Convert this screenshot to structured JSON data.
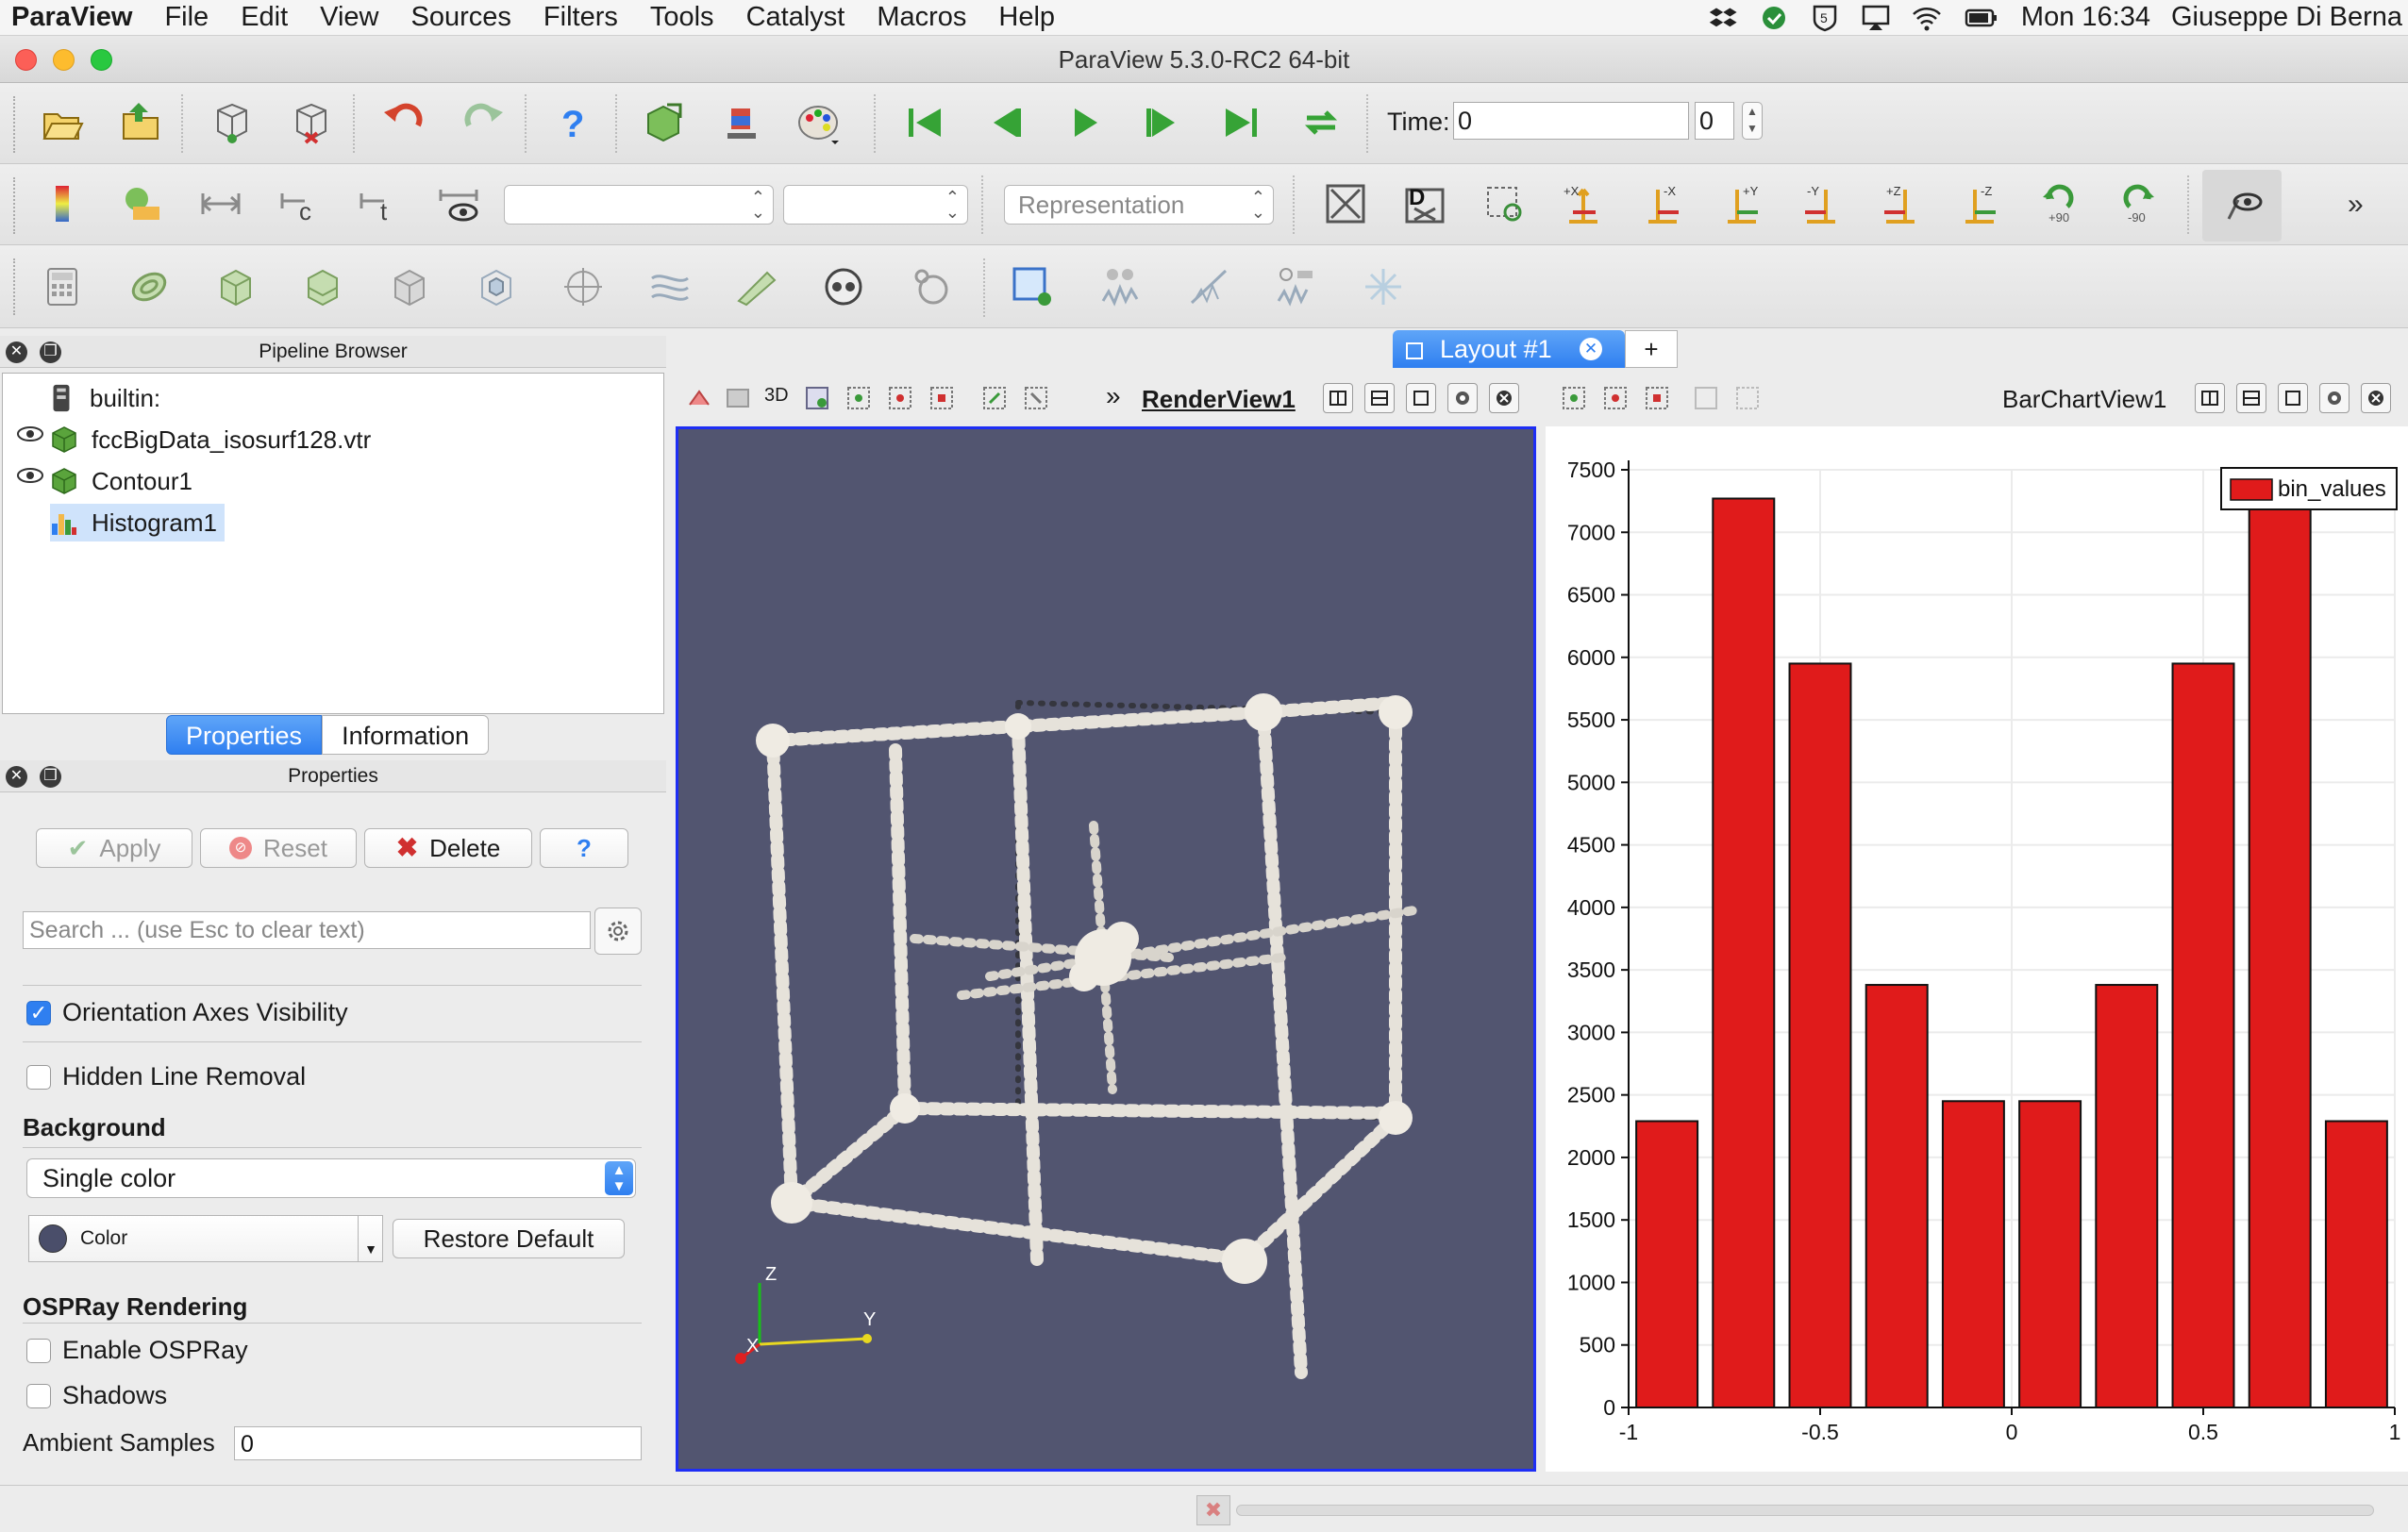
{
  "menubar": {
    "app": "ParaView",
    "items": [
      "File",
      "Edit",
      "View",
      "Sources",
      "Filters",
      "Tools",
      "Catalyst",
      "Macros",
      "Help"
    ],
    "clock": "Mon 16:34",
    "user": "Giuseppe Di Berna",
    "status_icons": [
      "dropbox-icon",
      "cloud-sync-icon",
      "shield-icon",
      "airplay-icon",
      "wifi-icon",
      "battery-icon"
    ]
  },
  "window": {
    "title": "ParaView 5.3.0-RC2 64-bit"
  },
  "toolbar": {
    "time_label": "Time:",
    "time_value": "0",
    "time_index": "0",
    "combo_representation": "Representation",
    "rotate_plus": "+90",
    "rotate_minus": "-90"
  },
  "pipeline": {
    "header": "Pipeline Browser",
    "items": [
      {
        "label": "builtin:",
        "icon": "server-icon",
        "visible": false
      },
      {
        "label": "fccBigData_isosurf128.vtr",
        "icon": "dataset-icon",
        "visible": true
      },
      {
        "label": "Contour1",
        "icon": "dataset-icon",
        "visible": true
      },
      {
        "label": "Histogram1",
        "icon": "histogram-icon",
        "visible": false,
        "selected": true
      }
    ]
  },
  "tabs": {
    "properties": "Properties",
    "information": "Information"
  },
  "properties": {
    "header": "Properties",
    "apply": "Apply",
    "reset": "Reset",
    "delete": "Delete",
    "help": "?",
    "search_placeholder": "Search ... (use Esc to clear text)",
    "orientation_axes": "Orientation Axes Visibility",
    "hidden_line": "Hidden Line Removal",
    "background_section": "Background",
    "background_mode": "Single color",
    "color_label": "Color",
    "restore_default": "Restore Default",
    "ospray_section": "OSPRay Rendering",
    "enable_ospray": "Enable OSPRay",
    "shadows": "Shadows",
    "ambient_label": "Ambient Samples",
    "ambient_value": "0"
  },
  "layout": {
    "tab": "Layout #1",
    "add": "+"
  },
  "render_view": {
    "name": "RenderView1",
    "mode_3d": "3D",
    "axes": {
      "z": "Z",
      "y": "Y",
      "x": "X"
    },
    "background_color": "#525570",
    "active_border_color": "#1e2ef5"
  },
  "bar_view": {
    "name": "BarChartView1"
  },
  "chart_data": {
    "type": "bar",
    "x": [
      -0.9,
      -0.7,
      -0.5,
      -0.3,
      -0.1,
      0.1,
      0.3,
      0.5,
      0.7,
      0.9
    ],
    "series": [
      {
        "name": "bin_values",
        "color": "#e01b1b",
        "values": [
          2290,
          7270,
          5950,
          3380,
          2450,
          2450,
          3380,
          5950,
          7270,
          2290
        ]
      }
    ],
    "xlim": [
      -1,
      1
    ],
    "ylim": [
      0,
      7500
    ],
    "xticks": [
      -1,
      -0.5,
      0,
      0.5,
      1
    ],
    "xtick_labels": [
      "-1",
      "-0.5",
      "0",
      "0.5",
      "1"
    ],
    "yticks": [
      0,
      500,
      1000,
      1500,
      2000,
      2500,
      3000,
      3500,
      4000,
      4500,
      5000,
      5500,
      6000,
      6500,
      7000,
      7500
    ],
    "grid": true,
    "legend_position": "top-right"
  },
  "colors": {
    "accent": "#2f7ff0",
    "bar": "#e01b1b"
  }
}
